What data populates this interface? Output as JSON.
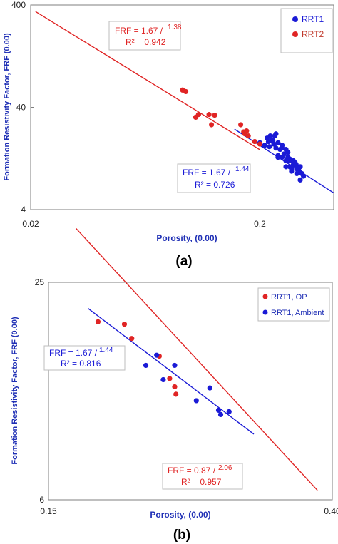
{
  "chart_data": [
    {
      "type": "scatter",
      "panel_label": "(a)",
      "xscale": "log",
      "yscale": "log",
      "xlabel": "Porosity,    (0.00)",
      "ylabel": "Formation Resistivity Factor, FRF (0.00)",
      "xlim": [
        0.02,
        0.42
      ],
      "ylim": [
        4,
        400
      ],
      "xticks": [
        "0.02",
        "0.2"
      ],
      "xtick_values": [
        0.02,
        0.2
      ],
      "yticks": [
        "4",
        "40",
        "400"
      ],
      "ytick_values": [
        4,
        40,
        400
      ],
      "legend_position": "top-right",
      "series": [
        {
          "name": "RRT1",
          "color": "#1a1ad6",
          "x": [
            0.2,
            0.21,
            0.215,
            0.22,
            0.222,
            0.225,
            0.23,
            0.232,
            0.235,
            0.24,
            0.24,
            0.245,
            0.25,
            0.25,
            0.255,
            0.26,
            0.26,
            0.265,
            0.27,
            0.27,
            0.275,
            0.28,
            0.28,
            0.285,
            0.29,
            0.29,
            0.295,
            0.3,
            0.3,
            0.305,
            0.31,
            0.27,
            0.26,
            0.25,
            0.24,
            0.235,
            0.228,
            0.218,
            0.265,
            0.275,
            0.3,
            0.288
          ],
          "y": [
            18,
            17,
            20,
            16.5,
            21,
            19,
            17.5,
            21,
            16,
            18,
            13,
            15.5,
            16,
            13,
            14,
            12,
            10.5,
            14.5,
            10.5,
            12.5,
            10,
            11,
            12,
            11.5,
            10,
            9,
            10,
            10.5,
            7.8,
            9,
            8.5,
            12,
            15.5,
            17,
            13.5,
            22,
            19,
            18.5,
            13,
            9.5,
            9.2,
            11
          ],
          "fit_label": "FRF = 1.67 /",
          "fit_exponent": "1.44",
          "r2_label": "R² = 0.726",
          "fit_a": 1.67,
          "fit_m": 1.44
        },
        {
          "name": "RRT2",
          "color": "#e02424",
          "x": [
            0.051,
            0.049,
            0.092,
            0.095,
            0.105,
            0.108,
            0.12,
            0.123,
            0.127,
            0.165,
            0.17,
            0.172,
            0.175,
            0.178,
            0.19,
            0.2
          ],
          "y": [
            197,
            153,
            59,
            57,
            32,
            34,
            34,
            27,
            33.5,
            27,
            23,
            22,
            23.5,
            21,
            18.5,
            17.5
          ],
          "fit_label": "FRF = 1.67 /",
          "fit_exponent": "1.38",
          "r2_label": "R² = 0.942",
          "fit_a": 1.67,
          "fit_m": 1.38
        }
      ]
    },
    {
      "type": "scatter",
      "panel_label": "(b)",
      "xscale": "log",
      "yscale": "log",
      "xlabel": "Porosity,    (0.00)",
      "ylabel": "Formation Resistivity Factor, FRF (0.00)",
      "xlim": [
        0.15,
        0.4
      ],
      "ylim": [
        6,
        25
      ],
      "xticks": [
        "0.15",
        "0.40"
      ],
      "xtick_values": [
        0.15,
        0.4
      ],
      "yticks": [
        "6",
        "25"
      ],
      "ytick_values": [
        6,
        25
      ],
      "legend_position": "top-right",
      "series": [
        {
          "name": "RRT1, OP",
          "color": "#e02424",
          "x": [
            0.178,
            0.195,
            0.2,
            0.22,
            0.228,
            0.232,
            0.233
          ],
          "y": [
            19.3,
            19,
            17.3,
            15.4,
            13.3,
            12.6,
            12
          ],
          "fit_label": "FRF = 0.87 /",
          "fit_exponent": "2.06",
          "r2_label": "R² = 0.957",
          "fit_a": 0.87,
          "fit_m": 2.06
        },
        {
          "name": "RRT1, Ambient",
          "color": "#1a1ad6",
          "x": [
            0.21,
            0.218,
            0.223,
            0.232,
            0.25,
            0.262,
            0.27,
            0.272,
            0.28
          ],
          "y": [
            14.5,
            15.5,
            13.2,
            14.5,
            11.5,
            12.5,
            10.8,
            10.5,
            10.7
          ],
          "fit_label": "FRF = 1.67 /",
          "fit_exponent": "1.44",
          "r2_label": "R² = 0.816",
          "fit_a": 1.67,
          "fit_m": 1.44
        }
      ]
    }
  ]
}
